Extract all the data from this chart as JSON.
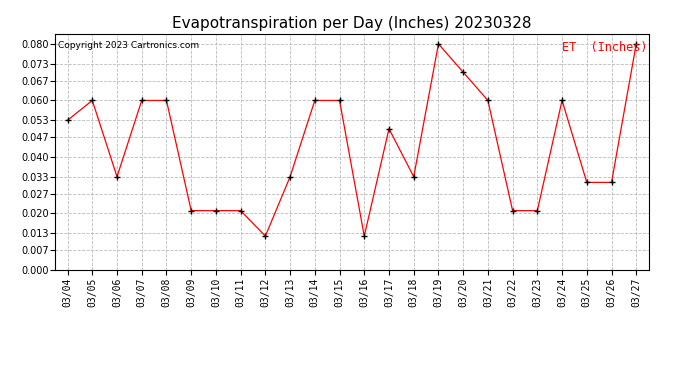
{
  "title": "Evapotranspiration per Day (Inches) 20230328",
  "copyright": "Copyright 2023 Cartronics.com",
  "legend_label": "ET  (Inches)",
  "dates": [
    "03/04",
    "03/05",
    "03/06",
    "03/07",
    "03/08",
    "03/09",
    "03/10",
    "03/11",
    "03/12",
    "03/13",
    "03/14",
    "03/15",
    "03/16",
    "03/17",
    "03/18",
    "03/19",
    "03/20",
    "03/21",
    "03/22",
    "03/23",
    "03/24",
    "03/25",
    "03/26",
    "03/27"
  ],
  "values": [
    0.053,
    0.06,
    0.033,
    0.06,
    0.06,
    0.021,
    0.021,
    0.021,
    0.012,
    0.033,
    0.06,
    0.06,
    0.012,
    0.05,
    0.033,
    0.08,
    0.07,
    0.06,
    0.021,
    0.021,
    0.06,
    0.031,
    0.031,
    0.08
  ],
  "line_color": "red",
  "marker_color": "black",
  "marker": "+",
  "ylim_max": 0.0836,
  "yticks": [
    0.0,
    0.007,
    0.013,
    0.02,
    0.027,
    0.033,
    0.04,
    0.047,
    0.053,
    0.06,
    0.067,
    0.073,
    0.08
  ],
  "background_color": "white",
  "grid_color": "#bbbbbb",
  "title_fontsize": 11,
  "tick_fontsize": 7,
  "copyright_fontsize": 6.5,
  "legend_fontsize": 8.5,
  "fig_width": 6.9,
  "fig_height": 3.75,
  "dpi": 100
}
